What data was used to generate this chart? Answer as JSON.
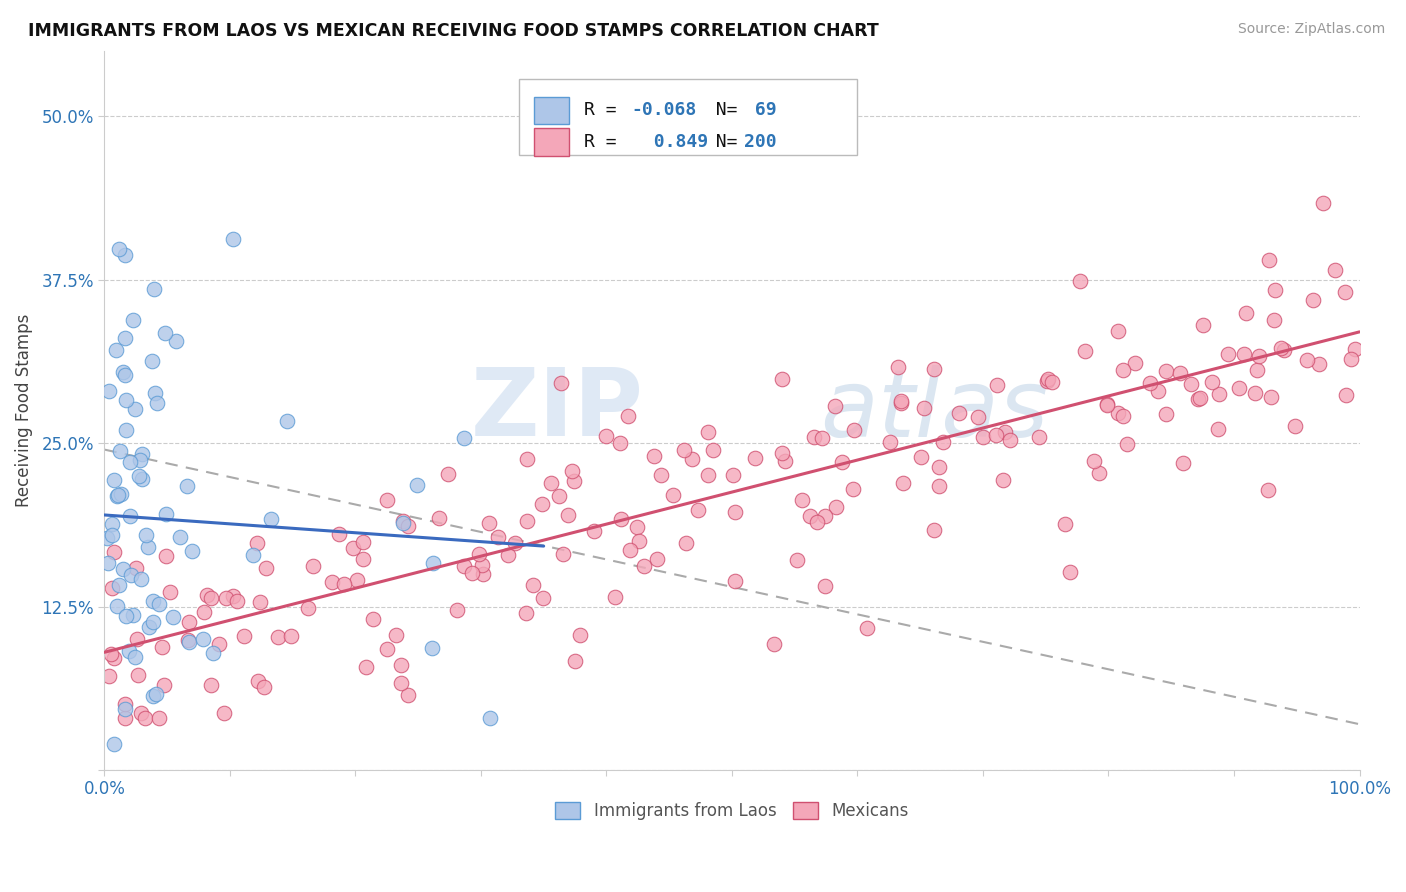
{
  "title": "IMMIGRANTS FROM LAOS VS MEXICAN RECEIVING FOOD STAMPS CORRELATION CHART",
  "source": "Source: ZipAtlas.com",
  "ylabel": "Receiving Food Stamps",
  "xlim": [
    0.0,
    1.0
  ],
  "ylim": [
    0.0,
    0.55
  ],
  "yticks": [
    0.0,
    0.125,
    0.25,
    0.375,
    0.5
  ],
  "ytick_labels": [
    "",
    "12.5%",
    "25.0%",
    "37.5%",
    "50.0%"
  ],
  "xtick_labels": [
    "0.0%",
    "",
    "",
    "",
    "",
    "",
    "",
    "",
    "",
    "",
    "100.0%"
  ],
  "laos_color": "#aec6e8",
  "laos_edge_color": "#5b9bd5",
  "mexican_color": "#f4a7b9",
  "mexican_edge_color": "#d05070",
  "laos_line_color": "#3a6abf",
  "mexican_line_color": "#d05070",
  "dashed_line_color": "#aaaaaa",
  "legend_text_color": "#2e75b6",
  "legend_number_color": "#2e75b6",
  "R_laos": -0.068,
  "N_laos": 69,
  "R_mexican": 0.849,
  "N_mexican": 200,
  "watermark_zip": "ZIP",
  "watermark_atlas": "atlas",
  "background_color": "#ffffff",
  "grid_color": "#cccccc",
  "laos_line_intercept": 0.195,
  "laos_line_slope": -0.068,
  "mexican_line_intercept": 0.09,
  "mexican_line_slope": 0.245,
  "dashed_line_intercept": 0.245,
  "dashed_line_slope": -0.21
}
